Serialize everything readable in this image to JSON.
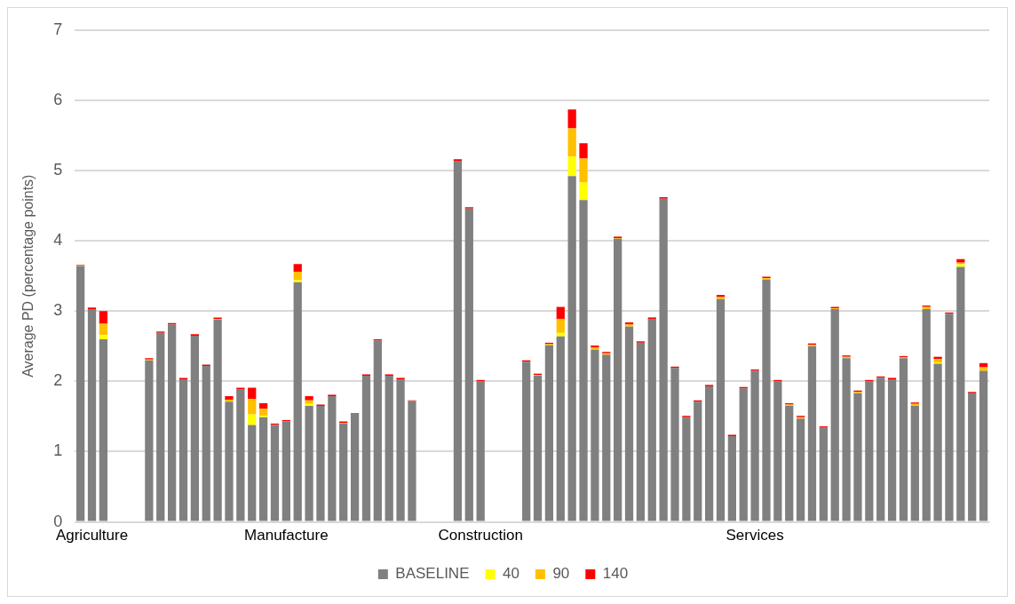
{
  "chart_data": {
    "type": "bar",
    "ylabel": "Average PD (percentage points)",
    "categories": [
      null,
      "Agriculture",
      null,
      null,
      null,
      null,
      null,
      null,
      null,
      null,
      null,
      null,
      null,
      null,
      null,
      null,
      null,
      null,
      "Manufacture",
      null,
      null,
      null,
      null,
      null,
      null,
      null,
      null,
      null,
      null,
      null,
      null,
      null,
      null,
      null,
      null,
      "Construction",
      null,
      null,
      null,
      null,
      null,
      null,
      null,
      null,
      null,
      null,
      null,
      null,
      null,
      null,
      null,
      null,
      null,
      null,
      null,
      null,
      null,
      null,
      null,
      "Services",
      null,
      null,
      null,
      null,
      null,
      null,
      null,
      null,
      null,
      null,
      null,
      null,
      null,
      null,
      null,
      null,
      null,
      null,
      null,
      null
    ],
    "stacked": true,
    "ylim": [
      0,
      7
    ],
    "yticks": [
      0,
      1,
      2,
      3,
      4,
      5,
      6,
      7
    ],
    "grid": "y",
    "legend": "bottom",
    "series": [
      {
        "name": "BASELINE",
        "color": "#808080",
        "values": [
          3.64,
          3.03,
          2.6,
          null,
          null,
          null,
          2.3,
          2.69,
          2.81,
          2.03,
          2.65,
          2.22,
          2.88,
          1.71,
          1.89,
          1.38,
          1.49,
          1.38,
          1.43,
          3.41,
          1.65,
          1.65,
          1.79,
          1.4,
          1.54,
          2.08,
          2.58,
          2.08,
          2.03,
          1.72,
          null,
          null,
          null,
          5.14,
          4.46,
          2.0,
          null,
          null,
          null,
          2.28,
          2.08,
          2.51,
          2.64,
          4.92,
          4.58,
          2.45,
          2.38,
          4.03,
          2.78,
          2.55,
          2.89,
          4.6,
          2.19,
          1.49,
          1.71,
          1.93,
          3.17,
          1.22,
          1.9,
          2.15,
          3.45,
          2.0,
          1.65,
          1.47,
          2.5,
          1.34,
          3.03,
          2.33,
          1.83,
          2.0,
          2.05,
          2.03,
          2.33,
          1.65,
          3.03,
          2.25,
          2.96,
          3.63,
          1.83,
          2.15
        ]
      },
      {
        "name": "40",
        "color": "#ffff00",
        "values": [
          0,
          0,
          0.06,
          null,
          null,
          null,
          0,
          0,
          0,
          0,
          0,
          0,
          0,
          0,
          0,
          0.15,
          0.02,
          0,
          0,
          0.03,
          0.03,
          0,
          0,
          0,
          0,
          0,
          0,
          0,
          0,
          0,
          null,
          null,
          null,
          0,
          0,
          0,
          null,
          null,
          null,
          0,
          0,
          0,
          0.05,
          0.28,
          0.25,
          0,
          0,
          0,
          0,
          0,
          0,
          0,
          0,
          0,
          0,
          0,
          0,
          0,
          0,
          0,
          0,
          0,
          0,
          0,
          0,
          0,
          0,
          0,
          0,
          0,
          0,
          0,
          0,
          0,
          0,
          0.02,
          0,
          0.04,
          0,
          0
        ]
      },
      {
        "name": "90",
        "color": "#ffc000",
        "values": [
          0.01,
          0,
          0.16,
          null,
          null,
          null,
          0.01,
          0,
          0,
          0,
          0,
          0,
          0.01,
          0.03,
          0,
          0.22,
          0.1,
          0,
          0,
          0.12,
          0.05,
          0,
          0,
          0.01,
          0,
          0,
          0,
          0,
          0,
          0,
          null,
          null,
          null,
          0,
          0,
          0,
          null,
          null,
          null,
          0,
          0.01,
          0.02,
          0.2,
          0.4,
          0.34,
          0.03,
          0.02,
          0.01,
          0.03,
          0,
          0,
          0,
          0,
          0,
          0,
          0,
          0.03,
          0,
          0,
          0,
          0.02,
          0,
          0.02,
          0.02,
          0.02,
          0,
          0.01,
          0.02,
          0.02,
          0,
          0,
          0,
          0.01,
          0.03,
          0.03,
          0.05,
          0,
          0.02,
          0,
          0.05
        ]
      },
      {
        "name": "140",
        "color": "#ff0000",
        "values": [
          0.01,
          0.02,
          0.18,
          null,
          null,
          null,
          0.02,
          0.02,
          0.02,
          0.02,
          0.02,
          0.02,
          0.02,
          0.05,
          0.02,
          0.16,
          0.08,
          0.02,
          0.02,
          0.11,
          0.06,
          0.02,
          0.02,
          0.02,
          0.01,
          0.02,
          0.02,
          0.02,
          0.02,
          0.01,
          null,
          null,
          null,
          0.02,
          0.02,
          0.02,
          null,
          null,
          null,
          0.02,
          0.02,
          0.02,
          0.17,
          0.27,
          0.22,
          0.03,
          0.02,
          0.02,
          0.03,
          0.02,
          0.02,
          0.02,
          0.02,
          0.02,
          0.02,
          0.02,
          0.03,
          0.02,
          0.02,
          0.02,
          0.02,
          0.02,
          0.02,
          0.02,
          0.02,
          0.02,
          0.02,
          0.02,
          0.02,
          0.02,
          0.02,
          0.02,
          0.02,
          0.02,
          0.02,
          0.03,
          0.02,
          0.05,
          0.02,
          0.06
        ]
      }
    ]
  }
}
